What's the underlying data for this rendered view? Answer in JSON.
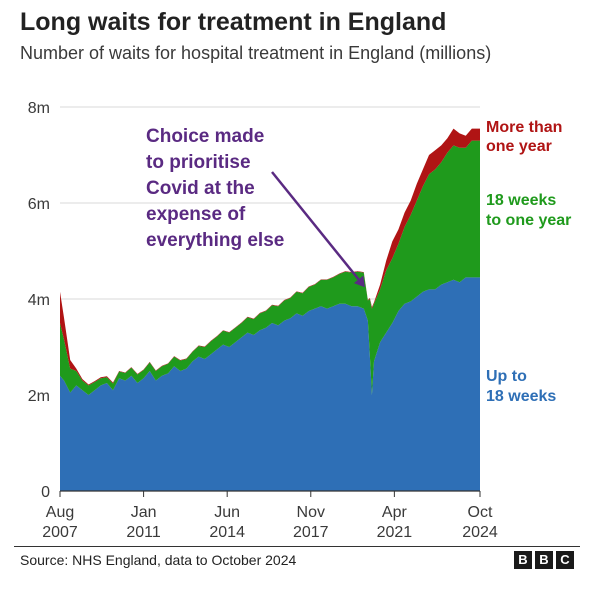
{
  "header": {
    "title": "Long waits for treatment in England",
    "subtitle": "Number of waits for hospital treatment in England (millions)"
  },
  "footer": {
    "source": "Source: NHS England, data to October 2024",
    "logo_letters": [
      "B",
      "B",
      "C"
    ]
  },
  "colors": {
    "up_to_18_weeks": "#2e6fb6",
    "18_weeks_to_one_year": "#1f9a1c",
    "more_than_one_year": "#b01414",
    "annotation": "#5a2a82",
    "grid": "#d9d9d9"
  },
  "chart_data": {
    "type": "area",
    "stacked": true,
    "title": "Long waits for treatment in England",
    "subtitle": "Number of waits for hospital treatment in England (millions)",
    "ylim": [
      0,
      8
    ],
    "y_ticks": [
      {
        "value": 0,
        "label": "0"
      },
      {
        "value": 2,
        "label": "2m"
      },
      {
        "value": 4,
        "label": "4m"
      },
      {
        "value": 6,
        "label": "6m"
      },
      {
        "value": 8,
        "label": "8m"
      }
    ],
    "x_ticks": [
      {
        "date": "2007-08",
        "label": [
          "Aug",
          "2007"
        ]
      },
      {
        "date": "2011-01",
        "label": [
          "Jan",
          "2011"
        ]
      },
      {
        "date": "2014-06",
        "label": [
          "Jun",
          "2014"
        ]
      },
      {
        "date": "2017-11",
        "label": [
          "Nov",
          "2017"
        ]
      },
      {
        "date": "2021-04",
        "label": [
          "Apr",
          "2021"
        ]
      },
      {
        "date": "2024-10",
        "label": [
          "Oct",
          "2024"
        ]
      }
    ],
    "grid": true,
    "x": [
      "2007-08",
      "2007-10",
      "2008-01",
      "2008-04",
      "2008-07",
      "2008-10",
      "2009-01",
      "2009-04",
      "2009-07",
      "2009-10",
      "2010-01",
      "2010-04",
      "2010-07",
      "2010-10",
      "2011-01",
      "2011-04",
      "2011-07",
      "2011-10",
      "2012-01",
      "2012-04",
      "2012-07",
      "2012-10",
      "2013-01",
      "2013-04",
      "2013-07",
      "2013-10",
      "2014-01",
      "2014-04",
      "2014-07",
      "2014-10",
      "2015-01",
      "2015-04",
      "2015-07",
      "2015-10",
      "2016-01",
      "2016-04",
      "2016-07",
      "2016-10",
      "2017-01",
      "2017-04",
      "2017-07",
      "2017-10",
      "2018-01",
      "2018-04",
      "2018-07",
      "2018-10",
      "2019-01",
      "2019-04",
      "2019-07",
      "2019-10",
      "2020-01",
      "2020-03",
      "2020-04",
      "2020-05",
      "2020-06",
      "2020-09",
      "2020-12",
      "2021-03",
      "2021-06",
      "2021-09",
      "2021-12",
      "2022-03",
      "2022-06",
      "2022-09",
      "2022-12",
      "2023-03",
      "2023-06",
      "2023-09",
      "2023-12",
      "2024-03",
      "2024-06",
      "2024-10"
    ],
    "series": [
      {
        "name": "Up to 18 weeks",
        "label": [
          "Up to",
          "18 weeks"
        ],
        "values": [
          2.4,
          2.3,
          2.05,
          2.2,
          2.1,
          2.0,
          2.1,
          2.2,
          2.25,
          2.1,
          2.35,
          2.3,
          2.4,
          2.25,
          2.35,
          2.5,
          2.3,
          2.4,
          2.45,
          2.6,
          2.5,
          2.55,
          2.7,
          2.8,
          2.75,
          2.85,
          2.95,
          3.05,
          3.0,
          3.1,
          3.2,
          3.3,
          3.25,
          3.35,
          3.4,
          3.5,
          3.45,
          3.55,
          3.6,
          3.7,
          3.65,
          3.75,
          3.8,
          3.85,
          3.8,
          3.85,
          3.9,
          3.9,
          3.85,
          3.85,
          3.8,
          3.55,
          2.8,
          2.0,
          2.7,
          3.1,
          3.3,
          3.5,
          3.75,
          3.9,
          3.95,
          4.05,
          4.15,
          4.2,
          4.2,
          4.3,
          4.35,
          4.4,
          4.35,
          4.45,
          4.45,
          4.45
        ]
      },
      {
        "name": "18 weeks to one year",
        "label": [
          "18 weeks",
          "to one year"
        ],
        "values": [
          1.1,
          0.85,
          0.5,
          0.3,
          0.2,
          0.2,
          0.17,
          0.15,
          0.12,
          0.14,
          0.14,
          0.16,
          0.17,
          0.18,
          0.17,
          0.18,
          0.2,
          0.2,
          0.2,
          0.2,
          0.22,
          0.2,
          0.2,
          0.22,
          0.25,
          0.27,
          0.27,
          0.29,
          0.3,
          0.3,
          0.3,
          0.32,
          0.33,
          0.35,
          0.35,
          0.37,
          0.4,
          0.42,
          0.42,
          0.45,
          0.47,
          0.5,
          0.5,
          0.55,
          0.6,
          0.6,
          0.62,
          0.67,
          0.7,
          0.72,
          0.75,
          0.42,
          1.2,
          1.8,
          1.2,
          1.1,
          1.3,
          1.35,
          1.4,
          1.6,
          1.8,
          2.0,
          2.2,
          2.4,
          2.5,
          2.55,
          2.7,
          2.8,
          2.8,
          2.7,
          2.85,
          2.85
        ]
      },
      {
        "name": "More than one year",
        "label": [
          "More than",
          "one year"
        ],
        "values": [
          0.65,
          0.45,
          0.18,
          0.05,
          0.03,
          0.02,
          0.02,
          0.02,
          0.02,
          0.02,
          0.01,
          0.01,
          0.01,
          0.01,
          0.01,
          0.01,
          0.01,
          0.01,
          0.01,
          0.01,
          0.01,
          0.01,
          0.01,
          0.01,
          0.01,
          0.01,
          0.01,
          0.01,
          0.01,
          0.01,
          0.01,
          0.01,
          0.01,
          0.01,
          0.01,
          0.01,
          0.01,
          0.01,
          0.01,
          0.01,
          0.01,
          0.01,
          0.01,
          0.01,
          0.01,
          0.01,
          0.01,
          0.01,
          0.01,
          0.01,
          0.01,
          0.01,
          0.02,
          0.03,
          0.03,
          0.1,
          0.2,
          0.35,
          0.3,
          0.3,
          0.3,
          0.35,
          0.35,
          0.4,
          0.4,
          0.35,
          0.3,
          0.35,
          0.3,
          0.25,
          0.25,
          0.25
        ]
      }
    ],
    "annotations": [
      {
        "text": [
          "Choice made",
          "to prioritise",
          "Covid at the",
          "expense of",
          "everything else"
        ],
        "points_to": {
          "date": "2020-03",
          "value": 4.1
        }
      }
    ]
  }
}
